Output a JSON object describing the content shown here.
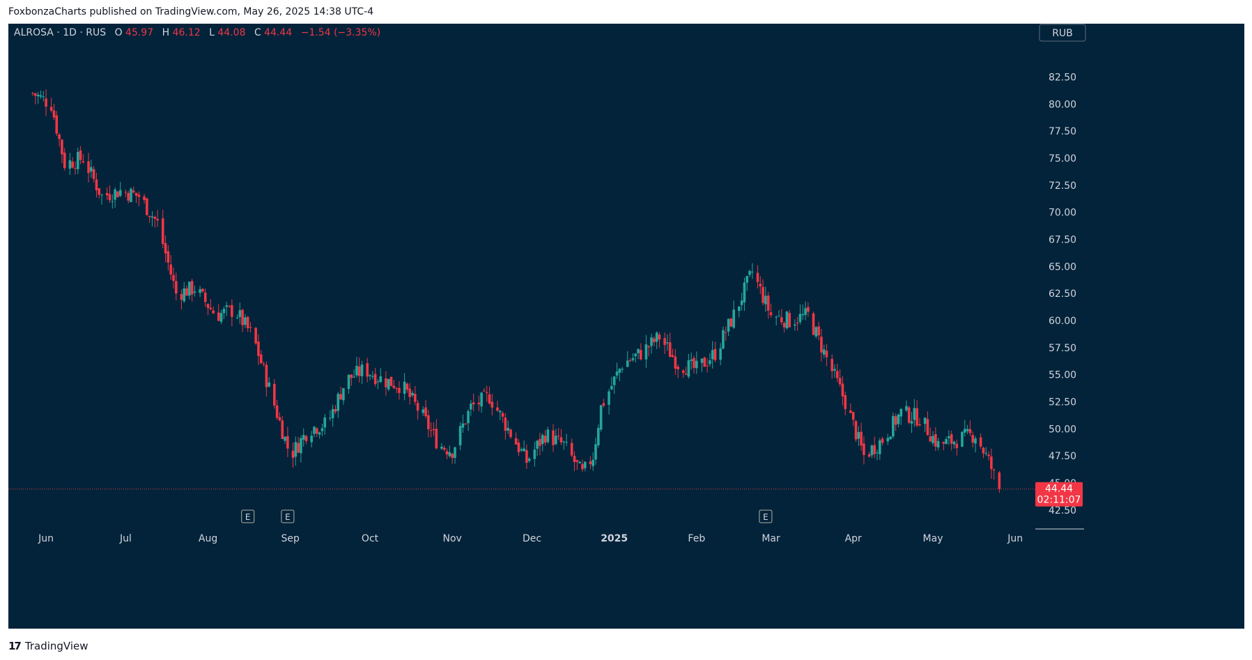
{
  "header": {
    "published_line": "FoxbonzaCharts published on TradingView.com, May 26, 2025 14:38 UTC-4"
  },
  "footer": {
    "brand": "TradingView",
    "logo_glyph": "17"
  },
  "legend": {
    "symbol_line": "ALROSA · 1D · RUS",
    "o_label": "O",
    "o_value": "45.97",
    "h_label": "H",
    "h_value": "46.12",
    "l_label": "L",
    "l_value": "44.08",
    "c_label": "C",
    "c_value": "44.44",
    "change": "−1.54 (−3.35%)"
  },
  "currency_button": "RUB",
  "price_badge": {
    "price": "44.44",
    "countdown": "02:11:07"
  },
  "earnings_marker_label": "E",
  "colors": {
    "background": "#02233a",
    "up": "#26a69a",
    "down": "#f23645",
    "text": "#d1d4dc"
  },
  "chart_data": {
    "type": "candlestick",
    "title": "ALROSA · 1D · RUS",
    "currency": "RUB",
    "ylim": [
      40.75,
      85.5
    ],
    "y_ticks": [
      "82.50",
      "80.00",
      "77.50",
      "75.00",
      "72.50",
      "70.00",
      "67.50",
      "65.00",
      "62.50",
      "60.00",
      "57.50",
      "55.00",
      "52.50",
      "50.00",
      "47.50",
      "45.00",
      "42.50"
    ],
    "x_ticks": [
      "Jun",
      "Jul",
      "Aug",
      "Sep",
      "Oct",
      "Nov",
      "Dec",
      "2025",
      "Feb",
      "Mar",
      "Apr",
      "May",
      "Jun"
    ],
    "x_range": [
      "2024-05-27",
      "2025-06-02"
    ],
    "last_price": 44.44,
    "earnings_markers": [
      "2024-08-16",
      "2024-08-31",
      "2025-02-27"
    ],
    "series": [
      {
        "name": "ALROSA",
        "ohlc_points": [
          [
            "2024-05-27",
            81.0
          ],
          [
            "2024-06-03",
            80.0
          ],
          [
            "2024-06-08",
            74.5
          ],
          [
            "2024-06-15",
            75.0
          ],
          [
            "2024-06-22",
            71.5
          ],
          [
            "2024-06-29",
            72.0
          ],
          [
            "2024-07-06",
            71.5
          ],
          [
            "2024-07-13",
            69.0
          ],
          [
            "2024-07-20",
            62.5
          ],
          [
            "2024-07-27",
            63.0
          ],
          [
            "2024-08-04",
            60.5
          ],
          [
            "2024-08-11",
            61.0
          ],
          [
            "2024-08-18",
            58.5
          ],
          [
            "2024-08-25",
            53.0
          ],
          [
            "2024-09-01",
            47.5
          ],
          [
            "2024-09-08",
            50.0
          ],
          [
            "2024-09-15",
            50.5
          ],
          [
            "2024-09-22",
            54.5
          ],
          [
            "2024-09-29",
            55.5
          ],
          [
            "2024-10-06",
            54.5
          ],
          [
            "2024-10-13",
            54.0
          ],
          [
            "2024-10-20",
            51.5
          ],
          [
            "2024-10-27",
            48.5
          ],
          [
            "2024-11-01",
            48.0
          ],
          [
            "2024-11-08",
            52.0
          ],
          [
            "2024-11-15",
            53.0
          ],
          [
            "2024-11-22",
            50.0
          ],
          [
            "2024-11-29",
            47.0
          ],
          [
            "2024-12-06",
            49.5
          ],
          [
            "2024-12-13",
            48.5
          ],
          [
            "2024-12-20",
            45.8
          ],
          [
            "2024-12-24",
            47.5
          ],
          [
            "2024-12-27",
            52.0
          ],
          [
            "2025-01-04",
            56.0
          ],
          [
            "2025-01-11",
            57.0
          ],
          [
            "2025-01-18",
            58.5
          ],
          [
            "2025-01-25",
            56.0
          ],
          [
            "2025-02-01",
            55.5
          ],
          [
            "2025-02-08",
            57.0
          ],
          [
            "2025-02-15",
            60.5
          ],
          [
            "2025-02-22",
            64.5
          ],
          [
            "2025-03-01",
            60.5
          ],
          [
            "2025-03-08",
            60.0
          ],
          [
            "2025-03-15",
            60.5
          ],
          [
            "2025-03-22",
            56.5
          ],
          [
            "2025-03-29",
            52.5
          ],
          [
            "2025-04-05",
            47.5
          ],
          [
            "2025-04-12",
            49.0
          ],
          [
            "2025-04-19",
            51.5
          ],
          [
            "2025-04-26",
            51.0
          ],
          [
            "2025-05-03",
            48.5
          ],
          [
            "2025-05-10",
            49.0
          ],
          [
            "2025-05-17",
            49.5
          ],
          [
            "2025-05-22",
            47.0
          ],
          [
            "2025-05-26",
            44.44
          ]
        ]
      }
    ]
  }
}
